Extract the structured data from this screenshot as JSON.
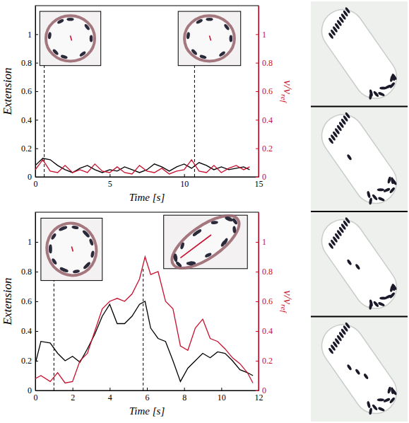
{
  "chart_data": [
    {
      "type": "line",
      "x_label": "Time [s]",
      "y_label": "Extension",
      "y2_label": "v/v",
      "y2_label_subscript": "ref",
      "xlim": [
        0,
        15
      ],
      "xticks": [
        0,
        5,
        10,
        15
      ],
      "ylim": [
        0,
        1.2
      ],
      "yticks": [
        0,
        0.2,
        0.4,
        0.6,
        0.8,
        1
      ],
      "y2lim": [
        0,
        1.2
      ],
      "y2ticks": [
        0,
        0.2,
        0.4,
        0.6,
        0.8,
        1
      ],
      "dashed_lines_x": [
        0.6,
        10.7
      ],
      "x": [
        0,
        0.5,
        1,
        1.5,
        2,
        2.5,
        3,
        3.5,
        4,
        4.5,
        5,
        5.5,
        6,
        6.5,
        7,
        7.5,
        8,
        8.5,
        9,
        9.5,
        10,
        10.5,
        11,
        11.5,
        12,
        12.5,
        13,
        13.5,
        14,
        14.4
      ],
      "series": [
        {
          "name": "Extension",
          "color": "#000000",
          "values": [
            0.08,
            0.13,
            0.12,
            0.08,
            0.05,
            0.03,
            0.06,
            0.08,
            0.05,
            0.03,
            0.05,
            0.04,
            0.07,
            0.05,
            0.03,
            0.05,
            0.09,
            0.07,
            0.04,
            0.07,
            0.09,
            0.06,
            0.1,
            0.08,
            0.05,
            0.07,
            0.05,
            0.06,
            0.07,
            0.05
          ]
        },
        {
          "name": "v/v",
          "color": "#c8102e",
          "axis": "y2",
          "values": [
            0.05,
            0.12,
            0.04,
            0.03,
            0.08,
            0.03,
            0.05,
            0.03,
            0.09,
            0.04,
            0.03,
            0.07,
            0.03,
            0.02,
            0.08,
            0.04,
            0.03,
            0.06,
            0.02,
            0.04,
            0.05,
            0.12,
            0.04,
            0.03,
            0.08,
            0.03,
            0.06,
            0.08,
            0.05,
            0.07
          ]
        }
      ]
    },
    {
      "type": "line",
      "x_label": "Time [s]",
      "y_label": "Extension",
      "y2_label": "v/v",
      "y2_label_subscript": "ref",
      "xlim": [
        0,
        12
      ],
      "xticks": [
        0,
        2,
        4,
        6,
        8,
        10,
        12
      ],
      "ylim": [
        0,
        1.2
      ],
      "yticks": [
        0,
        0.2,
        0.4,
        0.6,
        0.8,
        1
      ],
      "y2lim": [
        0,
        1.2
      ],
      "y2ticks": [
        0,
        0.2,
        0.4,
        0.6,
        0.8,
        1
      ],
      "dashed_lines_x": [
        1.0,
        5.8
      ],
      "x": [
        0,
        0.3,
        0.8,
        1.2,
        1.6,
        2,
        2.4,
        2.8,
        3.2,
        3.6,
        4,
        4.4,
        4.8,
        5.2,
        5.6,
        5.9,
        6.2,
        6.6,
        7,
        7.4,
        7.8,
        8.2,
        8.6,
        9,
        9.4,
        9.8,
        10.2,
        10.6,
        11,
        11.4,
        11.7
      ],
      "series": [
        {
          "name": "Extension",
          "color": "#000000",
          "values": [
            0.18,
            0.33,
            0.32,
            0.25,
            0.2,
            0.23,
            0.19,
            0.28,
            0.38,
            0.5,
            0.58,
            0.45,
            0.45,
            0.5,
            0.58,
            0.6,
            0.42,
            0.35,
            0.33,
            0.2,
            0.06,
            0.15,
            0.2,
            0.25,
            0.22,
            0.26,
            0.25,
            0.2,
            0.14,
            0.12,
            0.1
          ]
        },
        {
          "name": "v/v",
          "color": "#c8102e",
          "axis": "y2",
          "values": [
            0.08,
            0.1,
            0.06,
            0.12,
            0.05,
            0.06,
            0.2,
            0.25,
            0.4,
            0.55,
            0.6,
            0.62,
            0.6,
            0.65,
            0.75,
            0.9,
            0.78,
            0.8,
            0.6,
            0.55,
            0.3,
            0.27,
            0.42,
            0.48,
            0.35,
            0.33,
            0.28,
            0.22,
            0.18,
            0.12,
            0.05
          ]
        }
      ]
    }
  ]
}
